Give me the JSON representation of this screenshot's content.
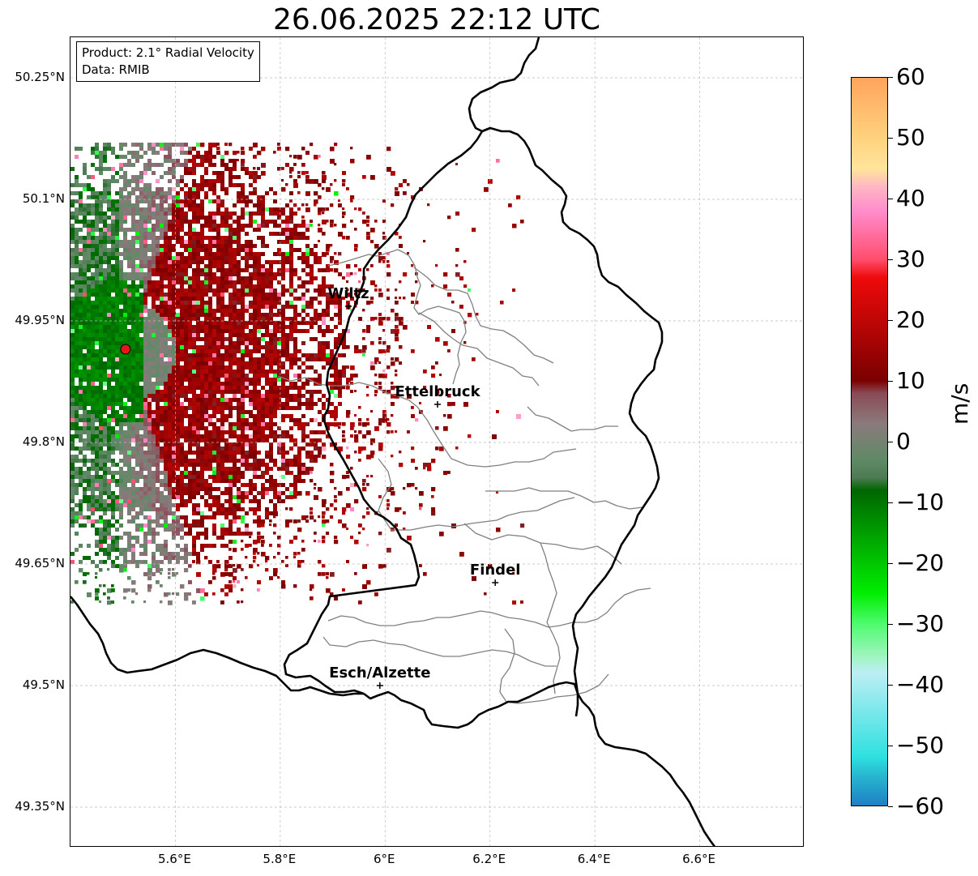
{
  "title": "26.06.2025 22:12 UTC",
  "info": {
    "product": "Product: 2.1° Radial Velocity",
    "data": "Data: RMIB"
  },
  "axes": {
    "lat_ticks": [
      "50.25°N",
      "50.1°N",
      "49.95°N",
      "49.8°N",
      "49.65°N",
      "49.5°N",
      "49.35°N"
    ],
    "lon_ticks": [
      "5.6°E",
      "5.8°E",
      "6°E",
      "6.2°E",
      "6.4°E",
      "6.6°E"
    ],
    "lat_values": [
      50.25,
      50.1,
      49.95,
      49.8,
      49.65,
      49.5,
      49.35
    ],
    "lon_values": [
      5.6,
      5.8,
      6.0,
      6.2,
      6.4,
      6.6
    ],
    "lon_range": [
      5.4,
      6.8
    ],
    "lat_range": [
      49.3,
      50.3
    ]
  },
  "cities": [
    {
      "name": "Wiltz",
      "lon": 5.93,
      "lat": 49.968
    },
    {
      "name": "Ettelbruck",
      "lon": 6.1,
      "lat": 49.847
    },
    {
      "name": "Findel",
      "lon": 6.21,
      "lat": 49.627
    },
    {
      "name": "Esch/Alzette",
      "lon": 5.99,
      "lat": 49.5
    }
  ],
  "radar_site": {
    "lon": 5.505,
    "lat": 49.915,
    "color": "#e8141a"
  },
  "colorbar": {
    "label": "m/s",
    "ticks": [
      "60",
      "50",
      "40",
      "30",
      "20",
      "10",
      "0",
      "−10",
      "−20",
      "−30",
      "−40",
      "−50",
      "−60"
    ],
    "tick_values": [
      60,
      50,
      40,
      30,
      20,
      10,
      0,
      -10,
      -20,
      -30,
      -40,
      -50,
      -60
    ],
    "range": [
      -60,
      60
    ],
    "stops": [
      {
        "v": 60,
        "color": "#ffa45c"
      },
      {
        "v": 50,
        "color": "#ffd27e"
      },
      {
        "v": 45,
        "color": "#ffe59c"
      },
      {
        "v": 42,
        "color": "#ffb6c3"
      },
      {
        "v": 38,
        "color": "#ff8ccc"
      },
      {
        "v": 30,
        "color": "#ff4d6b"
      },
      {
        "v": 27,
        "color": "#ee0a0a"
      },
      {
        "v": 10,
        "color": "#7a0000"
      },
      {
        "v": 8,
        "color": "#8a4a55"
      },
      {
        "v": 3,
        "color": "#8a7a7c"
      },
      {
        "v": -3,
        "color": "#5f8a66"
      },
      {
        "v": -6,
        "color": "#4d7a52"
      },
      {
        "v": -8,
        "color": "#006600"
      },
      {
        "v": -25,
        "color": "#00ee00"
      },
      {
        "v": -30,
        "color": "#4dfb6e"
      },
      {
        "v": -35,
        "color": "#9af5b8"
      },
      {
        "v": -38,
        "color": "#bceef4"
      },
      {
        "v": -52,
        "color": "#2ee0e0"
      },
      {
        "v": -55,
        "color": "#27b8d0"
      },
      {
        "v": -60,
        "color": "#1f7fc4"
      }
    ]
  },
  "colors": {
    "border": "#000000",
    "canton": "#808080",
    "grid": "#bbbbbb"
  }
}
